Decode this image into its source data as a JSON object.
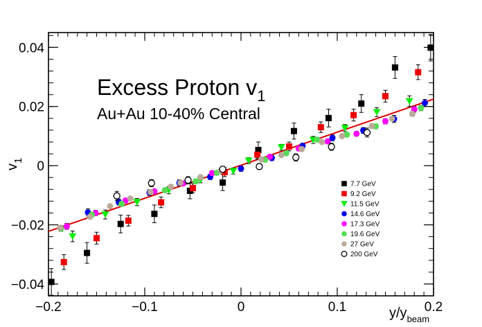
{
  "chart_data": {
    "type": "scatter",
    "title": "Excess Proton v",
    "title_subscript": "1",
    "subtitle": "Au+Au 10-40% Central",
    "xlabel": "y/y",
    "xlabel_subscript": "beam",
    "ylabel": "v",
    "ylabel_subscript": "1",
    "xlim": [
      -0.2,
      0.2
    ],
    "ylim": [
      -0.044,
      0.045
    ],
    "x_ticks": [
      -0.2,
      -0.1,
      0,
      0.1,
      0.2
    ],
    "x_tick_labels": [
      "−0.2",
      "−0.1",
      "0",
      "0.1",
      "0.2"
    ],
    "y_ticks": [
      -0.04,
      -0.02,
      0,
      0.02,
      0.04
    ],
    "y_tick_labels": [
      "−0.04",
      "−0.02",
      "0",
      "0.02",
      "0.04"
    ],
    "grid": false,
    "legend_position": "bottom-right",
    "fit_line": {
      "color": "#dd0000",
      "x": [
        -0.2,
        0.2
      ],
      "y": [
        -0.0222,
        0.0225
      ]
    },
    "series": [
      {
        "name": "7.7 GeV",
        "marker": "square",
        "color": "#000000",
        "filled": true,
        "x": [
          -0.197,
          -0.16,
          -0.125,
          -0.09,
          -0.053,
          -0.019,
          0.018,
          0.055,
          0.091,
          0.125,
          0.16,
          0.197
        ],
        "y": [
          -0.0393,
          -0.0295,
          -0.0197,
          -0.0163,
          -0.0085,
          -0.0057,
          0.0053,
          0.0117,
          0.0161,
          0.021,
          0.0332,
          0.0399
        ],
        "err": [
          0.0045,
          0.0035,
          0.003,
          0.003,
          0.0027,
          0.0027,
          0.0027,
          0.0027,
          0.003,
          0.003,
          0.0037,
          0.0045
        ]
      },
      {
        "name": "9.2 GeV",
        "marker": "square",
        "color": "#ee0000",
        "filled": true,
        "x": [
          -0.184,
          -0.15,
          -0.117,
          -0.083,
          -0.05,
          -0.017,
          0.017,
          0.05,
          0.083,
          0.117,
          0.15,
          0.184
        ],
        "y": [
          -0.0326,
          -0.0245,
          -0.0186,
          -0.0124,
          -0.0076,
          -0.0022,
          0.0037,
          0.0065,
          0.013,
          0.0171,
          0.0235,
          0.0316
        ],
        "err": [
          0.0025,
          0.002,
          0.0018,
          0.0018,
          0.0015,
          0.0015,
          0.0015,
          0.0015,
          0.0018,
          0.002,
          0.002,
          0.0025
        ]
      },
      {
        "name": "11.5 GeV",
        "marker": "triangle-down",
        "color": "#00ee00",
        "filled": true,
        "x": [
          -0.175,
          -0.141,
          -0.108,
          -0.075,
          -0.042,
          -0.008,
          0.008,
          0.042,
          0.075,
          0.108,
          0.141,
          0.175
        ],
        "y": [
          -0.0239,
          -0.0165,
          -0.0123,
          -0.0083,
          -0.0048,
          -0.0018,
          0.0017,
          0.0062,
          0.0087,
          0.0127,
          0.0181,
          0.0218
        ],
        "err": [
          0.0018,
          0.0015,
          0.0012,
          0.0012,
          0.001,
          0.001,
          0.001,
          0.001,
          0.0012,
          0.0012,
          0.0015,
          0.0018
        ]
      },
      {
        "name": "14.6 GeV",
        "marker": "circle",
        "color": "#0000ee",
        "filled": true,
        "x": [
          -0.159,
          -0.127,
          -0.095,
          -0.064,
          -0.032,
          0.0,
          0.032,
          0.064,
          0.095,
          0.127,
          0.159,
          0.191
        ],
        "y": [
          -0.0158,
          -0.0123,
          -0.0091,
          -0.0058,
          -0.0038,
          -0.001,
          0.0026,
          0.0067,
          0.0094,
          0.0119,
          0.0158,
          0.0212
        ],
        "err": [
          0.0012,
          0.001,
          0.001,
          0.001,
          0.0009,
          0.0009,
          0.0009,
          0.0009,
          0.001,
          0.001,
          0.0012,
          0.0012
        ]
      },
      {
        "name": "17.3 GeV",
        "marker": "circle",
        "color": "#ff00ff",
        "filled": true,
        "x": [
          -0.181,
          -0.151,
          -0.12,
          -0.09,
          -0.06,
          -0.03,
          0.03,
          0.06,
          0.09,
          0.12,
          0.15,
          0.18
        ],
        "y": [
          -0.0205,
          -0.016,
          -0.0118,
          -0.0087,
          -0.006,
          -0.0025,
          0.003,
          0.0058,
          0.0082,
          0.0108,
          0.015,
          0.0191
        ],
        "err": [
          0.001,
          0.0009,
          0.0008,
          0.0008,
          0.0007,
          0.0007,
          0.0007,
          0.0007,
          0.0008,
          0.0008,
          0.0009,
          0.001
        ]
      },
      {
        "name": "19.6 GeV",
        "marker": "circle",
        "color": "#55dd55",
        "filled": true,
        "x": [
          -0.187,
          -0.155,
          -0.124,
          -0.079,
          -0.047,
          -0.025,
          0.025,
          0.047,
          0.079,
          0.11,
          0.14,
          0.187
        ],
        "y": [
          -0.0213,
          -0.0166,
          -0.0129,
          -0.0083,
          -0.0053,
          -0.0024,
          0.002,
          0.0042,
          0.0088,
          0.0105,
          0.0133,
          0.0195
        ],
        "err": [
          0.0009,
          0.0008,
          0.0007,
          0.0007,
          0.0006,
          0.0006,
          0.0006,
          0.0006,
          0.0007,
          0.0007,
          0.0008,
          0.0009
        ]
      },
      {
        "name": "27 GeV",
        "marker": "circle",
        "color": "#bbaa99",
        "filled": true,
        "x": [
          -0.188,
          -0.157,
          -0.136,
          -0.115,
          -0.094,
          -0.073,
          -0.063,
          -0.042,
          -0.021,
          0.021,
          0.042,
          0.063,
          0.084,
          0.105,
          0.136,
          0.157,
          0.178
        ],
        "y": [
          -0.021,
          -0.0173,
          -0.0137,
          -0.0111,
          -0.0089,
          -0.0071,
          -0.0058,
          -0.0039,
          -0.0017,
          0.0021,
          0.0036,
          0.0056,
          0.008,
          0.01,
          0.0134,
          0.0159,
          0.0175
        ],
        "err": [
          0.0008,
          0.0007,
          0.0006,
          0.0006,
          0.0006,
          0.0006,
          0.0006,
          0.0005,
          0.0005,
          0.0005,
          0.0005,
          0.0006,
          0.0006,
          0.0006,
          0.0006,
          0.0007,
          0.0008
        ]
      },
      {
        "name": "200 GeV",
        "marker": "circle",
        "color": "#000000",
        "filled": false,
        "x": [
          -0.129,
          -0.093,
          -0.055,
          -0.019,
          0.019,
          0.057,
          0.094,
          0.131
        ],
        "y": [
          -0.0102,
          -0.0059,
          -0.0049,
          -0.0012,
          -0.0003,
          0.0028,
          0.0064,
          0.0112
        ],
        "err": [
          0.0015,
          0.0012,
          0.0012,
          0.001,
          0.001,
          0.0012,
          0.0012,
          0.0015
        ]
      }
    ]
  }
}
